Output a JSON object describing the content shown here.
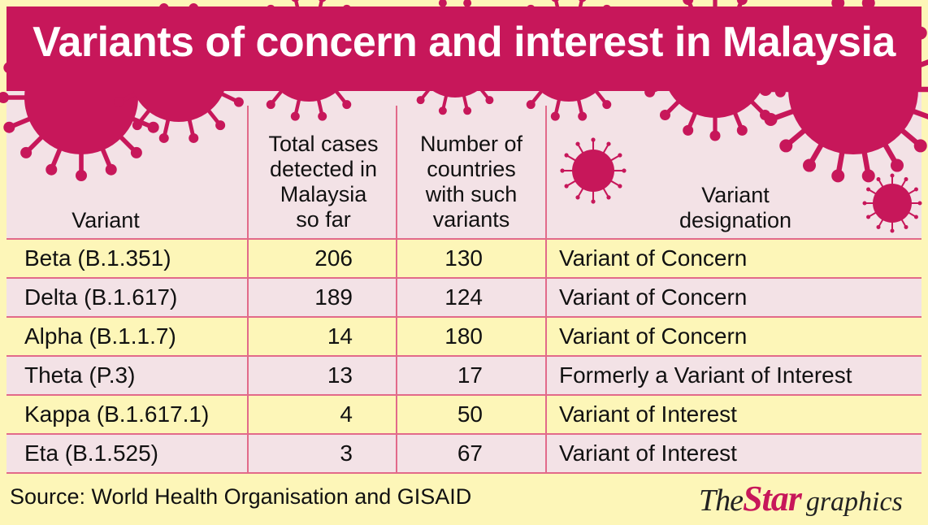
{
  "title": "Variants of concern and interest in Malaysia",
  "colors": {
    "accent": "#c7175a",
    "background": "#fdf6b8",
    "header": "#f3e2e6",
    "row_alt": "#f3e2e6",
    "rule": "#e26a8a"
  },
  "chart_data": {
    "type": "table",
    "title": "Variants of concern and interest in Malaysia",
    "columns": [
      "Variant",
      "Total cases detected in Malaysia so far",
      "Number of countries with such variants",
      "Variant designation"
    ],
    "header_lines": [
      [
        "Variant"
      ],
      [
        "Total cases",
        "detected in",
        "Malaysia",
        "so far"
      ],
      [
        "Number of",
        "countries",
        "with such",
        "variants"
      ],
      [
        "Variant",
        "designation"
      ]
    ],
    "rows": [
      [
        "Beta (B.1.351)",
        "206",
        "130",
        "Variant of Concern"
      ],
      [
        "Delta (B.1.617)",
        "189",
        "124",
        "Variant of Concern"
      ],
      [
        "Alpha (B.1.1.7)",
        "14",
        "180",
        "Variant of Concern"
      ],
      [
        "Theta (P.3)",
        "13",
        "17",
        "Formerly a Variant of Interest"
      ],
      [
        "Kappa (B.1.617.1)",
        "4",
        "50",
        "Variant of Interest"
      ],
      [
        "Eta (B.1.525)",
        "3",
        "67",
        "Variant of Interest"
      ]
    ]
  },
  "footer": {
    "source": "Source: World Health Organisation and GISAID",
    "logo_the": "The",
    "logo_star": "Star",
    "logo_graphics": "graphics"
  }
}
